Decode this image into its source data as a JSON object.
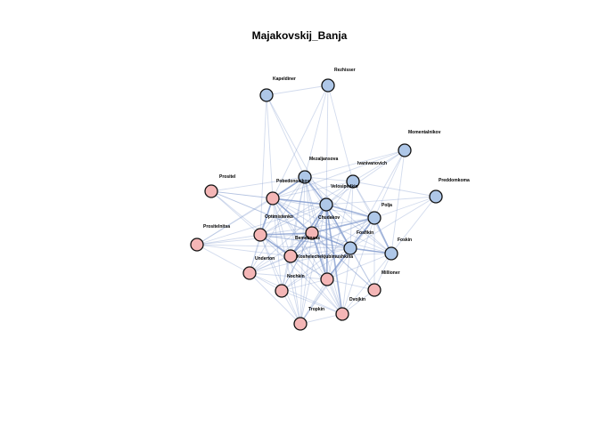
{
  "title": "Majakovskij_Banja",
  "colors": {
    "group_a": "#f4b6b6",
    "group_b": "#aec7e8",
    "node_stroke": "#111111",
    "edge": "#7f98cc"
  },
  "nodes": [
    {
      "id": "Rezhisser",
      "label": "Rezhisser",
      "group": "b"
    },
    {
      "id": "Kapeldiner",
      "label": "Kapeldiner",
      "group": "b"
    },
    {
      "id": "Momentalnikov",
      "label": "Momentalnikov",
      "group": "b"
    },
    {
      "id": "Mezaljansova",
      "label": "Mezaljansova",
      "group": "b"
    },
    {
      "id": "Ivanivanovich",
      "label": "Ivanivanovich",
      "group": "b"
    },
    {
      "id": "Pobedonosikov",
      "label": "Pobedonosikov",
      "group": "a"
    },
    {
      "id": "Velosipedkin",
      "label": "Velosipedkin",
      "group": "b"
    },
    {
      "id": "Preddomkoma",
      "label": "Preddomkoma",
      "group": "b"
    },
    {
      "id": "Prositel",
      "label": "Prositel",
      "group": "a"
    },
    {
      "id": "Chudakov",
      "label": "Chudakov",
      "group": "b"
    },
    {
      "id": "Polja",
      "label": "Polja",
      "group": "b"
    },
    {
      "id": "Optimistenko",
      "label": "Optimistenko",
      "group": "a"
    },
    {
      "id": "Bemelmans",
      "label": "Bemelmans",
      "group": "a"
    },
    {
      "id": "Prositelnitsa",
      "label": "Prositelnitsa",
      "group": "a"
    },
    {
      "id": "Foskin",
      "label": "Foskin",
      "group": "b"
    },
    {
      "id": "Fosfikin",
      "label": "Fosfikin",
      "group": "b"
    },
    {
      "id": "Koshelechekjubimushkina",
      "label": "Koshelechekjubimushkina",
      "group": "a"
    },
    {
      "id": "Underton",
      "label": "Underton",
      "group": "a"
    },
    {
      "id": "Millioner",
      "label": "Millioner",
      "group": "a"
    },
    {
      "id": "Nochkin",
      "label": "Nochkin",
      "group": "a"
    },
    {
      "id": "Dvojkin",
      "label": "Dvojkin",
      "group": "a"
    },
    {
      "id": "Tropkin",
      "label": "Tropkin",
      "group": "a"
    },
    {
      "id": "Fosfikin2",
      "label": "",
      "group": "b"
    },
    {
      "id": "Mezaljansova2",
      "label": "",
      "group": "a"
    }
  ]
}
